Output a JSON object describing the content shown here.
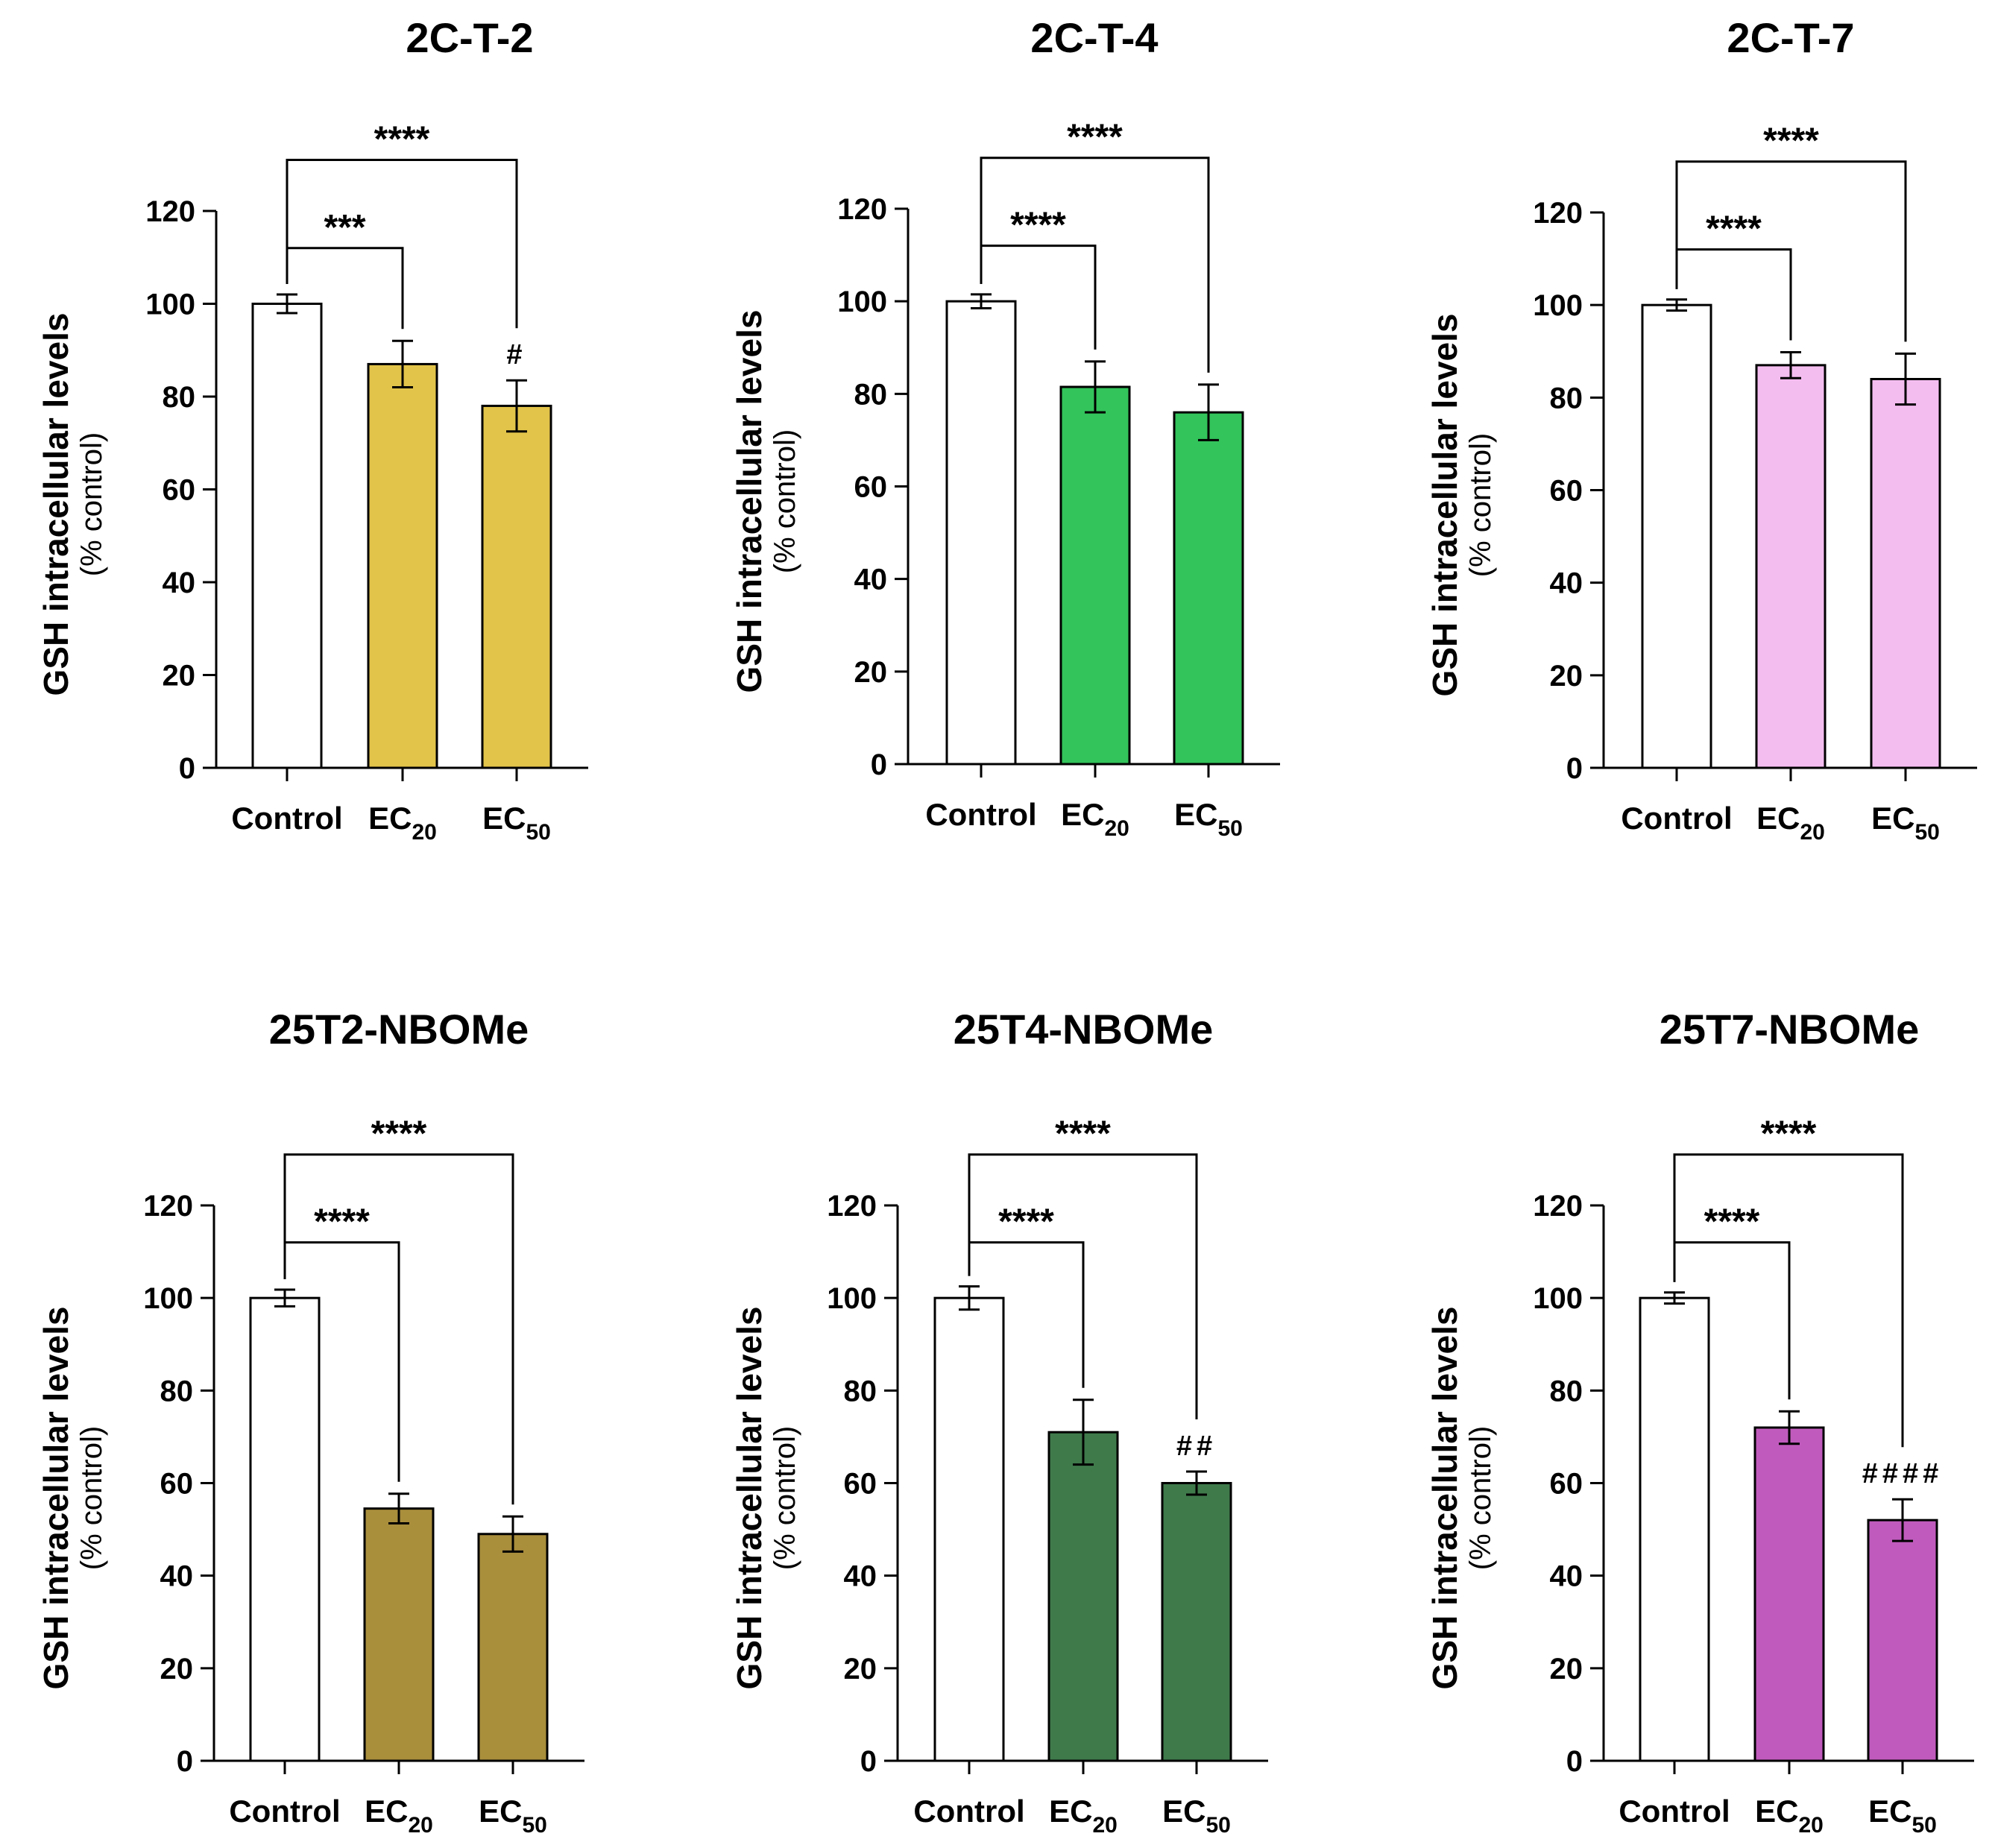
{
  "figure": {
    "yaxis_label": "GSH intracellular levels",
    "yaxis_sublabel": "(% control)"
  },
  "chart_data": [
    {
      "type": "bar",
      "title": "2C-T-2",
      "categories": [
        {
          "main": "Control",
          "sub": ""
        },
        {
          "main": "EC",
          "sub": "20"
        },
        {
          "main": "EC",
          "sub": "50"
        }
      ],
      "values": [
        100,
        87,
        78
      ],
      "errors": [
        2,
        5,
        5.5
      ],
      "colors": [
        "#ffffff",
        "#e2c44a",
        "#e2c44a"
      ],
      "ylim": [
        0,
        120
      ],
      "yticks": [
        "0",
        "20",
        "40",
        "60",
        "80",
        "100",
        "120"
      ],
      "comparisons": [
        {
          "from": 0,
          "to": 1,
          "label": "***"
        },
        {
          "from": 0,
          "to": 2,
          "label": "****"
        }
      ],
      "hash_marks": [
        "",
        "",
        "#"
      ]
    },
    {
      "type": "bar",
      "title": "2C-T-4",
      "categories": [
        {
          "main": "Control",
          "sub": ""
        },
        {
          "main": "EC",
          "sub": "20"
        },
        {
          "main": "EC",
          "sub": "50"
        }
      ],
      "values": [
        100,
        81.5,
        76
      ],
      "errors": [
        1.5,
        5.5,
        6
      ],
      "colors": [
        "#ffffff",
        "#33c45b",
        "#33c45b"
      ],
      "ylim": [
        0,
        120
      ],
      "yticks": [
        "0",
        "20",
        "40",
        "60",
        "80",
        "100",
        "120"
      ],
      "comparisons": [
        {
          "from": 0,
          "to": 1,
          "label": "****"
        },
        {
          "from": 0,
          "to": 2,
          "label": "****"
        }
      ],
      "hash_marks": [
        "",
        "",
        ""
      ]
    },
    {
      "type": "bar",
      "title": "2C-T-7",
      "categories": [
        {
          "main": "Control",
          "sub": ""
        },
        {
          "main": "EC",
          "sub": "20"
        },
        {
          "main": "EC",
          "sub": "50"
        }
      ],
      "values": [
        100,
        87,
        84
      ],
      "errors": [
        1.2,
        2.8,
        5.5
      ],
      "colors": [
        "#ffffff",
        "#f4bdf0",
        "#f4bdf0"
      ],
      "ylim": [
        0,
        120
      ],
      "yticks": [
        "0",
        "20",
        "40",
        "60",
        "80",
        "100",
        "120"
      ],
      "comparisons": [
        {
          "from": 0,
          "to": 1,
          "label": "****"
        },
        {
          "from": 0,
          "to": 2,
          "label": "****"
        }
      ],
      "hash_marks": [
        "",
        "",
        ""
      ]
    },
    {
      "type": "bar",
      "title": "25T2-NBOMe",
      "categories": [
        {
          "main": "Control",
          "sub": ""
        },
        {
          "main": "EC",
          "sub": "20"
        },
        {
          "main": "EC",
          "sub": "50"
        }
      ],
      "values": [
        100,
        54.5,
        49
      ],
      "errors": [
        1.8,
        3.2,
        3.8
      ],
      "colors": [
        "#ffffff",
        "#a98e3c",
        "#a98e3c"
      ],
      "ylim": [
        0,
        120
      ],
      "yticks": [
        "0",
        "20",
        "40",
        "60",
        "80",
        "100",
        "120"
      ],
      "comparisons": [
        {
          "from": 0,
          "to": 1,
          "label": "****"
        },
        {
          "from": 0,
          "to": 2,
          "label": "****"
        }
      ],
      "hash_marks": [
        "",
        "",
        ""
      ]
    },
    {
      "type": "bar",
      "title": "25T4-NBOMe",
      "categories": [
        {
          "main": "Control",
          "sub": ""
        },
        {
          "main": "EC",
          "sub": "20"
        },
        {
          "main": "EC",
          "sub": "50"
        }
      ],
      "values": [
        100,
        71,
        60
      ],
      "errors": [
        2.5,
        7,
        2.5
      ],
      "colors": [
        "#ffffff",
        "#3f7a4b",
        "#3f7a4b"
      ],
      "ylim": [
        0,
        120
      ],
      "yticks": [
        "0",
        "20",
        "40",
        "60",
        "80",
        "100",
        "120"
      ],
      "comparisons": [
        {
          "from": 0,
          "to": 1,
          "label": "****"
        },
        {
          "from": 0,
          "to": 2,
          "label": "****"
        }
      ],
      "hash_marks": [
        "",
        "",
        "##"
      ]
    },
    {
      "type": "bar",
      "title": "25T7-NBOMe",
      "categories": [
        {
          "main": "Control",
          "sub": ""
        },
        {
          "main": "EC",
          "sub": "20"
        },
        {
          "main": "EC",
          "sub": "50"
        }
      ],
      "values": [
        100,
        72,
        52
      ],
      "errors": [
        1.2,
        3.5,
        4.5
      ],
      "colors": [
        "#ffffff",
        "#c05bbd",
        "#c05bbd"
      ],
      "ylim": [
        0,
        120
      ],
      "yticks": [
        "0",
        "20",
        "40",
        "60",
        "80",
        "100",
        "120"
      ],
      "comparisons": [
        {
          "from": 0,
          "to": 1,
          "label": "****"
        },
        {
          "from": 0,
          "to": 2,
          "label": "****"
        }
      ],
      "hash_marks": [
        "",
        "",
        "####"
      ]
    }
  ]
}
